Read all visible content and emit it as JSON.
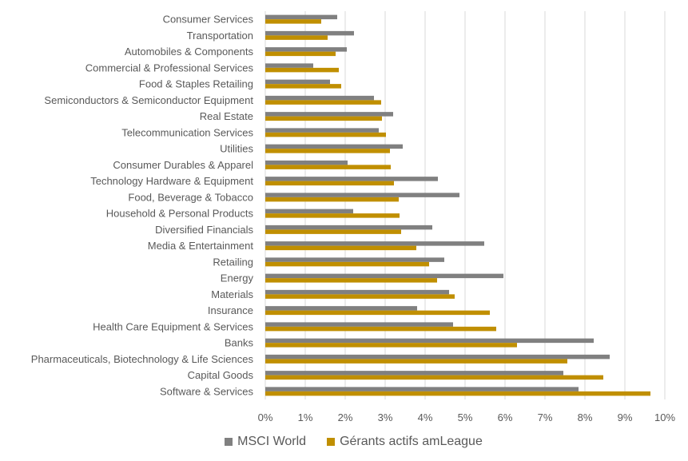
{
  "chart_data": {
    "type": "bar",
    "orientation": "horizontal",
    "title": "",
    "xlabel": "",
    "ylabel": "",
    "xlim": [
      0,
      10
    ],
    "x_tick_format": "percent",
    "x_ticks": [
      "0%",
      "1%",
      "2%",
      "3%",
      "4%",
      "5%",
      "6%",
      "7%",
      "8%",
      "9%",
      "10%"
    ],
    "grid": "vertical",
    "legend_position": "bottom",
    "categories": [
      "Consumer Services",
      "Transportation",
      "Automobiles & Components",
      "Commercial & Professional Services",
      "Food & Staples Retailing",
      "Semiconductors & Semiconductor Equipment",
      "Real Estate",
      "Telecommunication Services",
      "Utilities",
      "Consumer Durables & Apparel",
      "Technology Hardware & Equipment",
      "Food, Beverage & Tobacco",
      "Household & Personal Products",
      "Diversified Financials",
      "Media & Entertainment",
      "Retailing",
      "Energy",
      "Materials",
      "Insurance",
      "Health Care Equipment & Services",
      "Banks",
      "Pharmaceuticals, Biotechnology & Life Sciences",
      "Capital Goods",
      "Software & Services"
    ],
    "series": [
      {
        "name": "MSCI World",
        "color": "#808080",
        "values": [
          1.8,
          2.22,
          2.04,
          1.2,
          1.62,
          2.72,
          3.2,
          2.84,
          3.44,
          2.06,
          4.32,
          4.86,
          2.2,
          4.18,
          5.48,
          4.48,
          5.96,
          4.6,
          3.8,
          4.7,
          8.22,
          8.62,
          7.46,
          7.84
        ]
      },
      {
        "name": "Gérants actifs amLeague",
        "color": "#C08F00",
        "values": [
          1.4,
          1.56,
          1.76,
          1.84,
          1.9,
          2.9,
          2.92,
          3.02,
          3.12,
          3.14,
          3.22,
          3.34,
          3.36,
          3.4,
          3.78,
          4.1,
          4.3,
          4.74,
          5.62,
          5.78,
          6.3,
          7.56,
          8.46,
          9.64
        ]
      }
    ]
  }
}
